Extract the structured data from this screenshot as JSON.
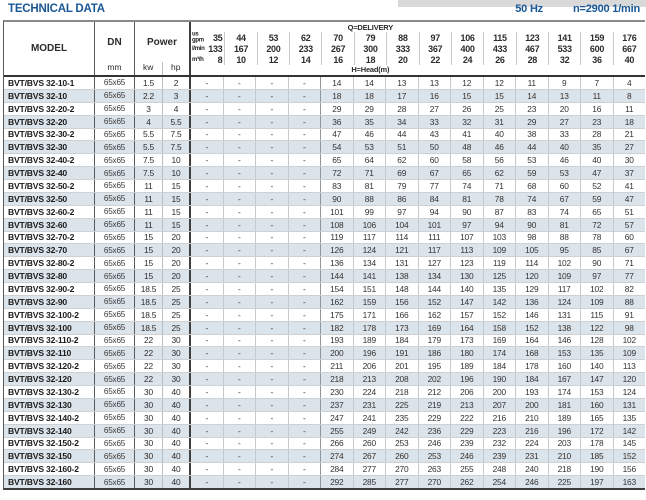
{
  "header": {
    "title": "TECHNICAL DATA",
    "frequency": "50 Hz",
    "speed": "n=2900 1/min"
  },
  "colors": {
    "accent_blue": "#1a5796",
    "row_stripe": "#dce4eb"
  },
  "table": {
    "headers": {
      "model": "MODEL",
      "dn": "DN",
      "dn_unit": "mm",
      "power": "Power",
      "power_unit_kw": "kw",
      "power_unit_hp": "hp",
      "delivery_label": "Q=DELIVERY",
      "head_label": "H=Head(m)",
      "unit_gpm_top": "us",
      "unit_gpm_bottom": "gpm",
      "unit_lmin": "l/min",
      "unit_m3h": "m³/h"
    },
    "delivery_gpm": [
      35,
      44,
      53,
      62,
      70,
      79,
      88,
      97,
      106,
      115,
      123,
      141,
      159,
      176
    ],
    "delivery_lmin": [
      133,
      167,
      200,
      233,
      267,
      300,
      333,
      367,
      400,
      433,
      467,
      533,
      600,
      667
    ],
    "delivery_m3h": [
      8,
      10,
      12,
      14,
      16,
      18,
      20,
      22,
      24,
      26,
      28,
      32,
      36,
      40
    ],
    "rows": [
      {
        "model": "BVT/BVS 32-10-1",
        "dn": "65x65",
        "kw": "1.5",
        "hp": "2",
        "head": [
          "-",
          "-",
          "-",
          "-",
          14,
          14,
          13,
          13,
          12,
          12,
          11,
          9,
          7,
          4
        ]
      },
      {
        "model": "BVT/BVS 32-10",
        "dn": "65x65",
        "kw": "2.2",
        "hp": "3",
        "head": [
          "-",
          "-",
          "-",
          "-",
          18,
          18,
          17,
          16,
          15,
          15,
          14,
          13,
          11,
          8
        ]
      },
      {
        "model": "BVT/BVS 32-20-2",
        "dn": "65x65",
        "kw": "3",
        "hp": "4",
        "head": [
          "-",
          "-",
          "-",
          "-",
          29,
          29,
          28,
          27,
          26,
          25,
          23,
          20,
          16,
          11
        ]
      },
      {
        "model": "BVT/BVS 32-20",
        "dn": "65x65",
        "kw": "4",
        "hp": "5.5",
        "head": [
          "-",
          "-",
          "-",
          "-",
          36,
          35,
          34,
          33,
          32,
          31,
          29,
          27,
          23,
          18
        ]
      },
      {
        "model": "BVT/BVS 32-30-2",
        "dn": "65x65",
        "kw": "5.5",
        "hp": "7.5",
        "head": [
          "-",
          "-",
          "-",
          "-",
          47,
          46,
          44,
          43,
          41,
          40,
          38,
          33,
          28,
          21
        ]
      },
      {
        "model": "BVT/BVS 32-30",
        "dn": "65x65",
        "kw": "5.5",
        "hp": "7.5",
        "head": [
          "-",
          "-",
          "-",
          "-",
          54,
          53,
          51,
          50,
          48,
          46,
          44,
          40,
          35,
          27
        ]
      },
      {
        "model": "BVT/BVS 32-40-2",
        "dn": "65x65",
        "kw": "7.5",
        "hp": "10",
        "head": [
          "-",
          "-",
          "-",
          "-",
          65,
          64,
          62,
          60,
          58,
          56,
          53,
          46,
          40,
          30
        ]
      },
      {
        "model": "BVT/BVS 32-40",
        "dn": "65x65",
        "kw": "7.5",
        "hp": "10",
        "head": [
          "-",
          "-",
          "-",
          "-",
          72,
          71,
          69,
          67,
          65,
          62,
          59,
          53,
          47,
          37
        ]
      },
      {
        "model": "BVT/BVS 32-50-2",
        "dn": "65x65",
        "kw": "11",
        "hp": "15",
        "head": [
          "-",
          "-",
          "-",
          "-",
          83,
          81,
          79,
          77,
          74,
          71,
          68,
          60,
          52,
          41
        ]
      },
      {
        "model": "BVT/BVS 32-50",
        "dn": "65x65",
        "kw": "11",
        "hp": "15",
        "head": [
          "-",
          "-",
          "-",
          "-",
          90,
          88,
          86,
          84,
          81,
          78,
          74,
          67,
          59,
          47
        ]
      },
      {
        "model": "BVT/BVS 32-60-2",
        "dn": "65x65",
        "kw": "11",
        "hp": "15",
        "head": [
          "-",
          "-",
          "-",
          "-",
          101,
          99,
          97,
          94,
          90,
          87,
          83,
          74,
          65,
          51
        ]
      },
      {
        "model": "BVT/BVS 32-60",
        "dn": "65x65",
        "kw": "11",
        "hp": "15",
        "head": [
          "-",
          "-",
          "-",
          "-",
          108,
          106,
          104,
          101,
          97,
          94,
          90,
          81,
          72,
          57
        ]
      },
      {
        "model": "BVT/BVS 32-70-2",
        "dn": "65x65",
        "kw": "15",
        "hp": "20",
        "head": [
          "-",
          "-",
          "-",
          "-",
          119,
          117,
          114,
          111,
          107,
          103,
          98,
          88,
          78,
          60
        ]
      },
      {
        "model": "BVT/BVS 32-70",
        "dn": "65x65",
        "kw": "15",
        "hp": "20",
        "head": [
          "-",
          "-",
          "-",
          "-",
          126,
          124,
          121,
          117,
          113,
          109,
          105,
          95,
          85,
          67
        ]
      },
      {
        "model": "BVT/BVS 32-80-2",
        "dn": "65x65",
        "kw": "15",
        "hp": "20",
        "head": [
          "-",
          "-",
          "-",
          "-",
          136,
          134,
          131,
          127,
          123,
          119,
          114,
          102,
          90,
          71
        ]
      },
      {
        "model": "BVT/BVS 32-80",
        "dn": "65x65",
        "kw": "15",
        "hp": "20",
        "head": [
          "-",
          "-",
          "-",
          "-",
          144,
          141,
          138,
          134,
          130,
          125,
          120,
          109,
          97,
          77
        ]
      },
      {
        "model": "BVT/BVS 32-90-2",
        "dn": "65x65",
        "kw": "18.5",
        "hp": "25",
        "head": [
          "-",
          "-",
          "-",
          "-",
          154,
          151,
          148,
          144,
          140,
          135,
          129,
          117,
          102,
          82
        ]
      },
      {
        "model": "BVT/BVS 32-90",
        "dn": "65x65",
        "kw": "18.5",
        "hp": "25",
        "head": [
          "-",
          "-",
          "-",
          "-",
          162,
          159,
          156,
          152,
          147,
          142,
          136,
          124,
          109,
          88
        ]
      },
      {
        "model": "BVT/BVS 32-100-2",
        "dn": "65x65",
        "kw": "18.5",
        "hp": "25",
        "head": [
          "-",
          "-",
          "-",
          "-",
          175,
          171,
          166,
          162,
          157,
          152,
          146,
          131,
          115,
          91
        ]
      },
      {
        "model": "BVT/BVS 32-100",
        "dn": "65x65",
        "kw": "18.5",
        "hp": "25",
        "head": [
          "-",
          "-",
          "-",
          "-",
          182,
          178,
          173,
          169,
          164,
          158,
          152,
          138,
          122,
          98
        ]
      },
      {
        "model": "BVT/BVS 32-110-2",
        "dn": "65x65",
        "kw": "22",
        "hp": "30",
        "head": [
          "-",
          "-",
          "-",
          "-",
          193,
          189,
          184,
          179,
          173,
          169,
          164,
          146,
          128,
          102
        ]
      },
      {
        "model": "BVT/BVS 32-110",
        "dn": "65x65",
        "kw": "22",
        "hp": "30",
        "head": [
          "-",
          "-",
          "-",
          "-",
          200,
          196,
          191,
          186,
          180,
          174,
          168,
          153,
          135,
          109
        ]
      },
      {
        "model": "BVT/BVS 32-120-2",
        "dn": "65x65",
        "kw": "22",
        "hp": "30",
        "head": [
          "-",
          "-",
          "-",
          "-",
          211,
          206,
          201,
          195,
          189,
          184,
          178,
          160,
          140,
          113
        ]
      },
      {
        "model": "BVT/BVS 32-120",
        "dn": "65x65",
        "kw": "22",
        "hp": "30",
        "head": [
          "-",
          "-",
          "-",
          "-",
          218,
          213,
          208,
          202,
          196,
          190,
          184,
          167,
          147,
          120
        ]
      },
      {
        "model": "BVT/BVS 32-130-2",
        "dn": "65x65",
        "kw": "30",
        "hp": "40",
        "head": [
          "-",
          "-",
          "-",
          "-",
          230,
          224,
          218,
          212,
          206,
          200,
          193,
          174,
          153,
          124
        ]
      },
      {
        "model": "BVT/BVS 32-130",
        "dn": "65x65",
        "kw": "30",
        "hp": "40",
        "head": [
          "-",
          "-",
          "-",
          "-",
          237,
          231,
          225,
          219,
          213,
          207,
          200,
          181,
          160,
          131
        ]
      },
      {
        "model": "BVT/BVS 32-140-2",
        "dn": "65x65",
        "kw": "30",
        "hp": "40",
        "head": [
          "-",
          "-",
          "-",
          "-",
          247,
          241,
          235,
          229,
          222,
          216,
          210,
          189,
          165,
          135
        ]
      },
      {
        "model": "BVT/BVS 32-140",
        "dn": "65x65",
        "kw": "30",
        "hp": "40",
        "head": [
          "-",
          "-",
          "-",
          "-",
          255,
          249,
          242,
          236,
          229,
          223,
          216,
          196,
          172,
          142
        ]
      },
      {
        "model": "BVT/BVS 32-150-2",
        "dn": "65x65",
        "kw": "30",
        "hp": "40",
        "head": [
          "-",
          "-",
          "-",
          "-",
          266,
          260,
          253,
          246,
          239,
          232,
          224,
          203,
          178,
          145
        ]
      },
      {
        "model": "BVT/BVS 32-150",
        "dn": "65x65",
        "kw": "30",
        "hp": "40",
        "head": [
          "-",
          "-",
          "-",
          "-",
          274,
          267,
          260,
          253,
          246,
          239,
          231,
          210,
          185,
          152
        ]
      },
      {
        "model": "BVT/BVS 32-160-2",
        "dn": "65x65",
        "kw": "30",
        "hp": "40",
        "head": [
          "-",
          "-",
          "-",
          "-",
          284,
          277,
          270,
          263,
          255,
          248,
          240,
          218,
          190,
          156
        ]
      },
      {
        "model": "BVT/BVS 32-160",
        "dn": "65x65",
        "kw": "30",
        "hp": "40",
        "head": [
          "-",
          "-",
          "-",
          "-",
          292,
          285,
          277,
          270,
          262,
          254,
          246,
          225,
          197,
          163
        ]
      }
    ]
  }
}
